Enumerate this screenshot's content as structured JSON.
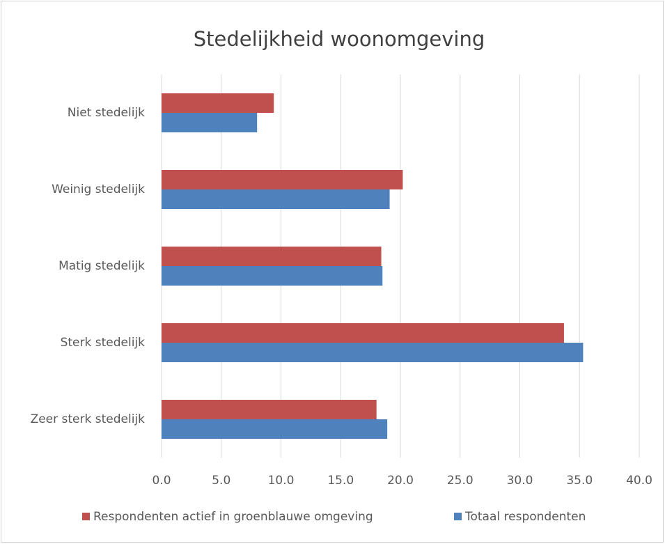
{
  "chart_data": {
    "type": "hbar",
    "title": "Stedelijkheid woonomgeving",
    "categories": [
      "Niet stedelijk",
      "Weinig stedelijk",
      "Matig stedelijk",
      "Sterk stedelijk",
      "Zeer sterk stedelijk"
    ],
    "series": [
      {
        "name": "Respondenten actief in groenblauwe omgeving",
        "color": "#c0504d",
        "values": [
          9.4,
          20.2,
          18.4,
          33.7,
          18.0
        ]
      },
      {
        "name": "Totaal respondenten",
        "color": "#4f81bd",
        "values": [
          8.0,
          19.1,
          18.5,
          35.3,
          18.9
        ]
      }
    ],
    "xlim": [
      0,
      40
    ],
    "xticks": [
      {
        "value": 0,
        "label": "0.0"
      },
      {
        "value": 5,
        "label": "5.0"
      },
      {
        "value": 10,
        "label": "10.0"
      },
      {
        "value": 15,
        "label": "15.0"
      },
      {
        "value": 20,
        "label": "20.0"
      },
      {
        "value": 25,
        "label": "25.0"
      },
      {
        "value": 30,
        "label": "30.0"
      },
      {
        "value": 35,
        "label": "35.0"
      },
      {
        "value": 40,
        "label": "40.0"
      }
    ],
    "grid": true,
    "legend": "bottom"
  }
}
